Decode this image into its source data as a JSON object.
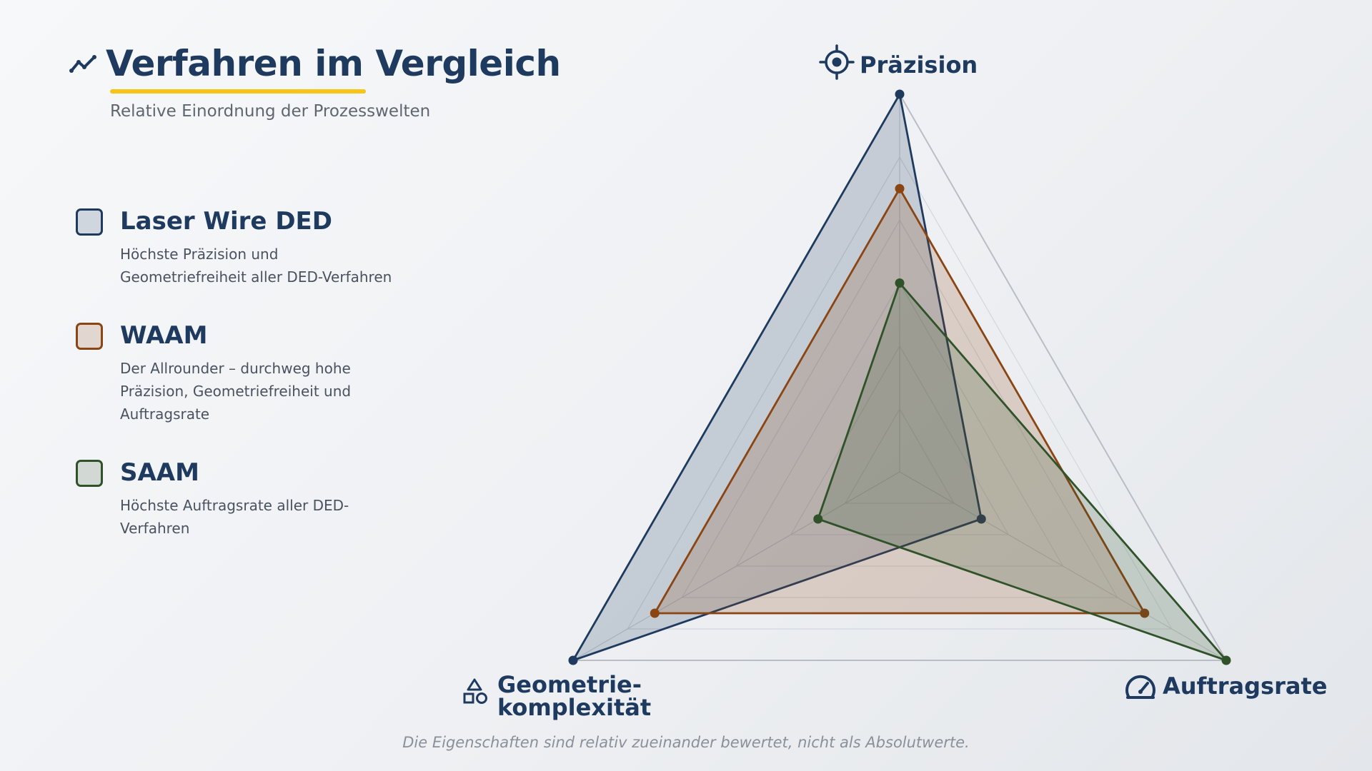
{
  "header": {
    "title": "Verfahren im Vergleich",
    "subtitle": "Relative Einordnung der Prozesswelten",
    "title_icon": "trend-line-icon",
    "accent_color": "#f5c518"
  },
  "legend": {
    "items": [
      {
        "name": "Laser Wire DED",
        "description": "Höchste Präzision und Geometriefreiheit aller DED-Verfahren",
        "color": "#1e3a5f"
      },
      {
        "name": "WAAM",
        "description": "Der Allrounder – durchweg hohe Präzision, Geometriefreiheit und Auftragsrate",
        "color": "#8b4513"
      },
      {
        "name": "SAAM",
        "description": "Höchste Auftragsrate aller DED-Verfahren",
        "color": "#2f5228"
      }
    ]
  },
  "chart_data": {
    "type": "radar",
    "axes": [
      {
        "label": "Präzision",
        "icon": "crosshair-icon"
      },
      {
        "label_lines": [
          "Geometrie-",
          "komplexität"
        ],
        "icon": "shapes-icon"
      },
      {
        "label": "Auftragsrate",
        "icon": "speedometer-icon"
      }
    ],
    "range": [
      0,
      100
    ],
    "grid_levels": 6,
    "series": [
      {
        "name": "Laser Wire DED",
        "values": [
          100,
          100,
          25
        ],
        "color": "#1e3a5f"
      },
      {
        "name": "WAAM",
        "values": [
          75,
          75,
          75
        ],
        "color": "#8b4513"
      },
      {
        "name": "SAAM",
        "values": [
          50,
          25,
          100
        ],
        "color": "#2f5228"
      }
    ]
  },
  "footer": {
    "note": "Die Eigenschaften sind relativ zueinander bewertet, nicht als Absolutwerte."
  }
}
